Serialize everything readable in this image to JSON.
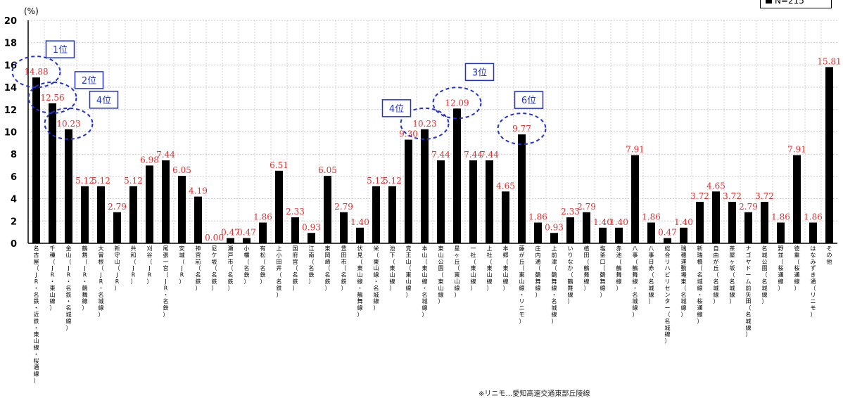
{
  "legend": {
    "label": "N=215"
  },
  "footnote": "※リニモ…愛知高速交通東部丘陵線",
  "chart_data": {
    "type": "bar",
    "ylabel": "(%)",
    "ylim": [
      0,
      20
    ],
    "yticks": [
      0,
      2,
      4,
      6,
      8,
      10,
      12,
      14,
      16,
      18,
      20
    ],
    "grid": true,
    "bar_color": "#000000",
    "label_color": "#e03030",
    "categories": [
      "名古屋（JR・名鉄・近鉄・東山線・桜通線）",
      "千種（JR・東山線）",
      "金山（JR・名鉄・名城線）",
      "鶴舞（JR・鶴舞線）",
      "大曽根（JR・名城線）",
      "新守山（JR）",
      "共和（JR）",
      "刈谷（JR）",
      "尾張一宮（JR・名鉄）",
      "安城（JR）",
      "神宮前（名鉄）",
      "尼ケ坂（名鉄）",
      "瀬戸市（名鉄）",
      "小幡（名鉄）",
      "有松（名鉄）",
      "上小田井（名鉄）",
      "国府宮（名鉄）",
      "江南（名鉄）",
      "東岡崎（名鉄）",
      "豊田市（名鉄）",
      "伏見（東山線・鶴舞線）",
      "栄（東山線・名城線）",
      "池下（東山線）",
      "覚王山（東山線）",
      "本山（東山線・名城線）",
      "東山公園（東山線）",
      "星ヶ丘（東山線）",
      "一社（東山線）",
      "上社（東山線）",
      "本郷（東山線）",
      "藤が丘（東山線・リニモ）",
      "庄内通（鶴舞線）",
      "上前津（鶴舞線・名城線）",
      "いりなか（鶴舞線）",
      "植田（鶴舞線）",
      "塩釜口（鶴舞線）",
      "赤池（鶴舞線）",
      "八事（鶴舞線・名城線）",
      "八事日赤（名城線）",
      "総合リハビリセンター（名城線）",
      "瑞穂運動場東（名城線）",
      "新瑞橋（名城線・桜通線）",
      "自由が丘（名城線）",
      "茶屋ヶ坂（名城線）",
      "ナゴヤドーム前矢田（名城線）",
      "名城公園（名城線）",
      "野並（桜通線）",
      "徳重（桜通線）",
      "はなみずき通（リニモ）",
      "その他"
    ],
    "tick_labels": [
      [
        "名",
        "古",
        "屋",
        "（",
        "J",
        "R",
        "・",
        "名",
        "鉄",
        "・",
        "近",
        "鉄",
        "・",
        "東",
        "山",
        "線",
        "・",
        "桜",
        "通",
        "線",
        "）"
      ],
      [
        "千",
        "種",
        "（",
        "J",
        "R",
        "・",
        "東",
        "山",
        "線",
        "）"
      ],
      [
        "金",
        "山",
        "（",
        "J",
        "R",
        "・",
        "名",
        "鉄",
        "・",
        "名",
        "城",
        "線",
        "）"
      ],
      [
        "鶴",
        "舞",
        "（",
        "J",
        "R",
        "・",
        "鶴",
        "舞",
        "線",
        "）"
      ],
      [
        "大",
        "曽",
        "根",
        "（",
        "J",
        "R",
        "・",
        "名",
        "城",
        "線",
        "）"
      ],
      [
        "新",
        "守",
        "山",
        "（",
        "J",
        "R",
        "）"
      ],
      [
        "共",
        "和",
        "（",
        "J",
        "R",
        "）"
      ],
      [
        "刈",
        "谷",
        "（",
        "J",
        "R",
        "）"
      ],
      [
        "尾",
        "張",
        "一",
        "宮",
        "（",
        "J",
        "R",
        "・",
        "名",
        "鉄",
        "）"
      ],
      [
        "安",
        "城",
        "（",
        "J",
        "R",
        "）"
      ],
      [
        "神",
        "宮",
        "前",
        "（",
        "名",
        "鉄",
        "）"
      ],
      [
        "尼",
        "ケ",
        "坂",
        "（",
        "名",
        "鉄",
        "）"
      ],
      [
        "瀬",
        "戸",
        "市",
        "（",
        "名",
        "鉄",
        "）"
      ],
      [
        "小",
        "幡",
        "（",
        "名",
        "鉄",
        "）"
      ],
      [
        "有",
        "松",
        "（",
        "名",
        "鉄",
        "）"
      ],
      [
        "上",
        "小",
        "田",
        "井",
        "（",
        "名",
        "鉄",
        "）"
      ],
      [
        "国",
        "府",
        "宮",
        "（",
        "名",
        "鉄",
        "）"
      ],
      [
        "江",
        "南",
        "（",
        "名",
        "鉄",
        "）"
      ],
      [
        "東",
        "岡",
        "崎",
        "（",
        "名",
        "鉄",
        "）"
      ],
      [
        "豊",
        "田",
        "市",
        "（",
        "名",
        "鉄",
        "）"
      ],
      [
        "伏",
        "見",
        "（",
        "東",
        "山",
        "線",
        "・",
        "鶴",
        "舞",
        "線",
        "）"
      ],
      [
        "栄",
        "（",
        "東",
        "山",
        "線",
        "・",
        "名",
        "城",
        "線",
        "）"
      ],
      [
        "池",
        "下",
        "（",
        "東",
        "山",
        "線",
        "）"
      ],
      [
        "覚",
        "王",
        "山",
        "（",
        "東",
        "山",
        "線",
        "）"
      ],
      [
        "本",
        "山",
        "（",
        "東",
        "山",
        "線",
        "・",
        "名",
        "城",
        "線",
        "）"
      ],
      [
        "東",
        "山",
        "公",
        "園",
        "（",
        "東",
        "山",
        "線",
        "）"
      ],
      [
        "星",
        "ヶ",
        "丘",
        "（",
        "東",
        "山",
        "線",
        "）"
      ],
      [
        "一",
        "社",
        "（",
        "東",
        "山",
        "線",
        "）"
      ],
      [
        "上",
        "社",
        "（",
        "東",
        "山",
        "線",
        "）"
      ],
      [
        "本",
        "郷",
        "（",
        "東",
        "山",
        "線",
        "）"
      ],
      [
        "藤",
        "が",
        "丘",
        "（",
        "東",
        "山",
        "線",
        "・",
        "リ",
        "ニ",
        "モ",
        "）"
      ],
      [
        "庄",
        "内",
        "通",
        "（",
        "鶴",
        "舞",
        "線",
        "）"
      ],
      [
        "上",
        "前",
        "津",
        "（",
        "鶴",
        "舞",
        "線",
        "・",
        "名",
        "城",
        "線",
        "）"
      ],
      [
        "い",
        "り",
        "な",
        "か",
        "（",
        "鶴",
        "舞",
        "線",
        "）"
      ],
      [
        "植",
        "田",
        "（",
        "鶴",
        "舞",
        "線",
        "）"
      ],
      [
        "塩",
        "釜",
        "口",
        "（",
        "鶴",
        "舞",
        "線",
        "）"
      ],
      [
        "赤",
        "池",
        "（",
        "鶴",
        "舞",
        "線",
        "）"
      ],
      [
        "八",
        "事",
        "（",
        "鶴",
        "舞",
        "線",
        "・",
        "名",
        "城",
        "線",
        "）"
      ],
      [
        "八",
        "事",
        "日",
        "赤",
        "（",
        "名",
        "城",
        "線",
        "）"
      ],
      [
        "総",
        "合",
        "リ",
        "ハ",
        "ビ",
        "リ",
        "セ",
        "ン",
        "タ",
        "ー",
        "（",
        "名",
        "城",
        "線",
        "）"
      ],
      [
        "瑞",
        "穂",
        "運",
        "動",
        "場",
        "東",
        "（",
        "名",
        "城",
        "線",
        "）"
      ],
      [
        "新",
        "瑞",
        "橋",
        "（",
        "名",
        "城",
        "線",
        "・",
        "桜",
        "通",
        "線",
        "）"
      ],
      [
        "自",
        "由",
        "が",
        "丘",
        "（",
        "名",
        "城",
        "線",
        "）"
      ],
      [
        "茶",
        "屋",
        "ヶ",
        "坂",
        "（",
        "名",
        "城",
        "線",
        "）"
      ],
      [
        "ナ",
        "ゴ",
        "ヤ",
        "ド",
        "ー",
        "ム",
        "前",
        "矢",
        "田",
        "（",
        "名",
        "城",
        "線",
        "）"
      ],
      [
        "名",
        "城",
        "公",
        "園",
        "（",
        "名",
        "城",
        "線",
        "）"
      ],
      [
        "野",
        "並",
        "（",
        "桜",
        "通",
        "線",
        "）"
      ],
      [
        "徳",
        "重",
        "（",
        "桜",
        "通",
        "線",
        "）"
      ],
      [
        "は",
        "な",
        "み",
        "ず",
        "き",
        "通",
        "（",
        "リ",
        "ニ",
        "モ",
        "）"
      ],
      [
        "そ",
        "の",
        "他"
      ]
    ],
    "values": [
      14.88,
      12.56,
      10.23,
      5.12,
      5.12,
      2.79,
      5.12,
      6.98,
      7.44,
      6.05,
      4.19,
      0.0,
      0.47,
      0.47,
      1.86,
      6.51,
      2.33,
      0.93,
      6.05,
      2.79,
      1.4,
      5.12,
      5.12,
      9.3,
      10.23,
      7.44,
      12.09,
      7.44,
      7.44,
      4.65,
      9.77,
      1.86,
      0.93,
      2.33,
      2.79,
      1.4,
      1.4,
      7.91,
      1.86,
      0.47,
      1.4,
      3.72,
      4.65,
      3.72,
      2.79,
      3.72,
      1.86,
      7.91,
      1.86,
      15.81
    ],
    "data_labels": [
      "14.88",
      "12.56",
      "10.23",
      "5.12",
      "5.12",
      "2.79",
      "5.12",
      "6.98",
      "7.44",
      "6.05",
      "4.19",
      "0.00",
      "0.47",
      "0.47",
      "1.86",
      "6.51",
      "2.33",
      "0.93",
      "6.05",
      "2.79",
      "1.40",
      "5.12",
      "5.12",
      "9.30",
      "10.23",
      "7.44",
      "12.09",
      "7.44",
      "7.44",
      "4.65",
      "9.77",
      "1.86",
      "0.93",
      "2.33",
      "2.79",
      "1.40",
      "1.40",
      "7.91",
      "1.86",
      "0.47",
      "1.40",
      "3.72",
      "4.65",
      "3.72",
      "2.79",
      "3.72",
      "1.86",
      "7.91",
      "1.86",
      "15.81"
    ],
    "annotations": [
      {
        "text": "1位",
        "category_index": 0
      },
      {
        "text": "2位",
        "category_index": 1
      },
      {
        "text": "4位",
        "category_index": 2
      },
      {
        "text": "4位",
        "category_index": 24
      },
      {
        "text": "3位",
        "category_index": 26
      },
      {
        "text": "6位",
        "category_index": 30
      }
    ]
  }
}
